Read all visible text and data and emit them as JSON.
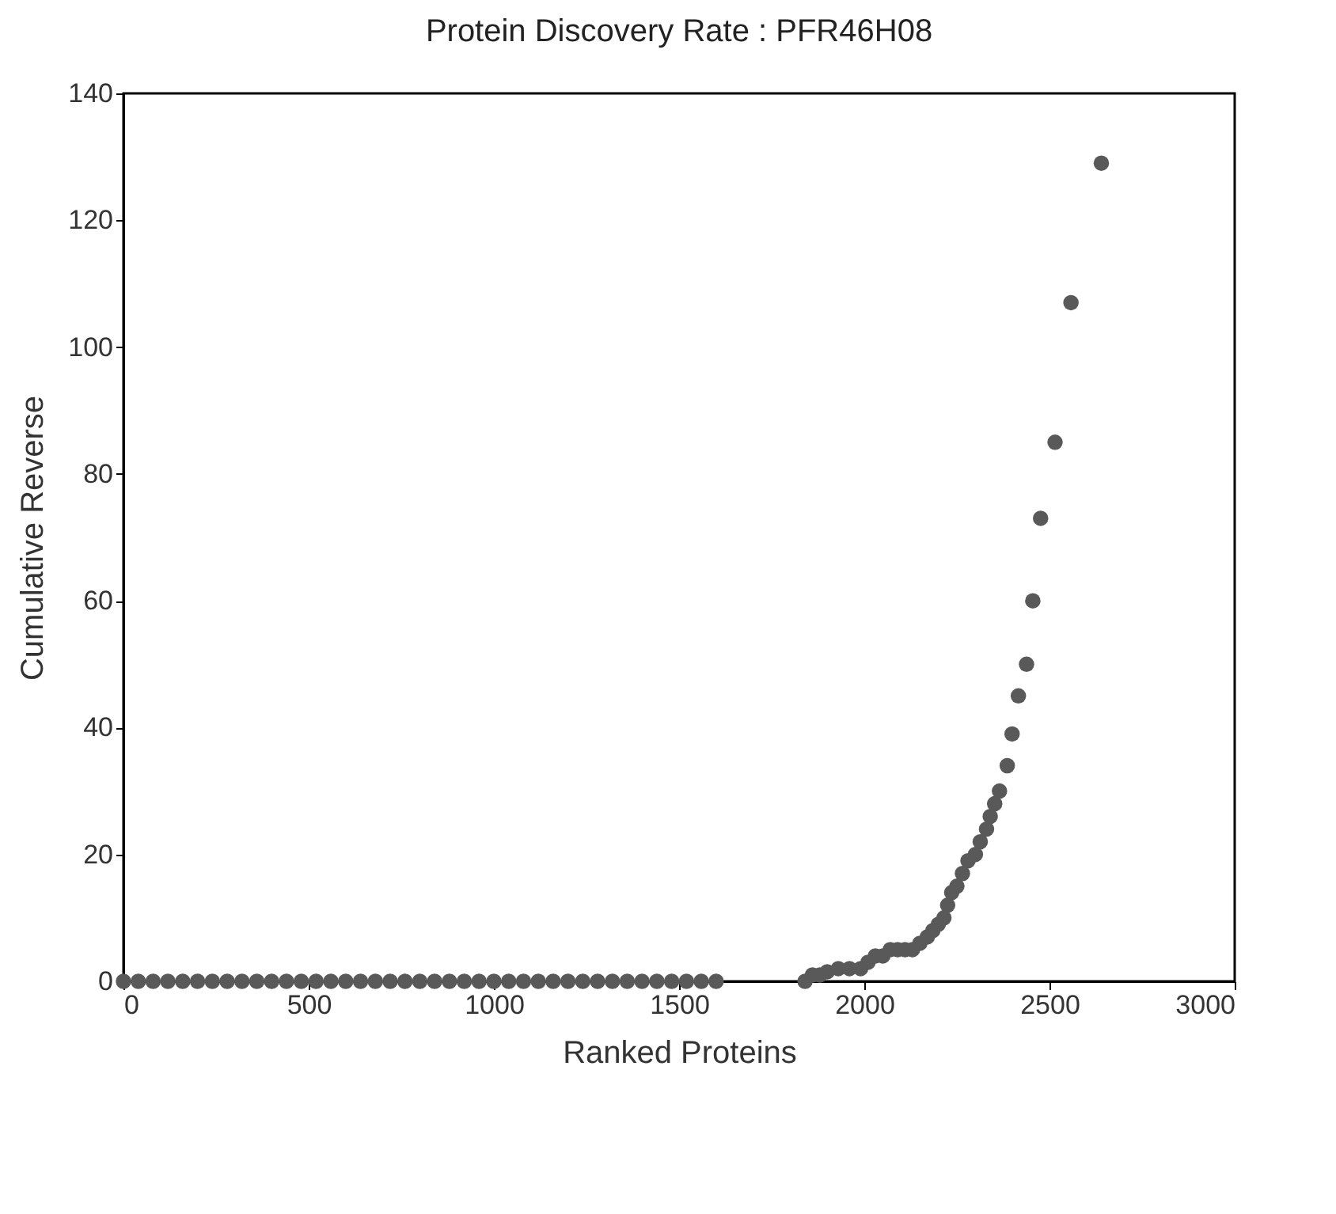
{
  "chart_data": {
    "type": "scatter",
    "title": "Protein Discovery Rate : PFR46H08",
    "xlabel": "Ranked Proteins",
    "ylabel": "Cumulative Reverse",
    "marker": "circle",
    "grid": false,
    "xlim": [
      0,
      3000
    ],
    "xticks": [
      0,
      500,
      1000,
      1500,
      2000,
      2500,
      3000
    ],
    "ylim": [
      0,
      140
    ],
    "yticks": [
      0,
      20,
      40,
      60,
      80,
      100,
      120,
      140
    ],
    "series": [
      {
        "color": "#595959",
        "x": [
          0,
          40,
          80,
          120,
          160,
          200,
          240,
          280,
          320,
          360,
          400,
          440,
          480,
          520,
          560,
          600,
          640,
          680,
          720,
          760,
          800,
          840,
          880,
          920,
          960,
          1000,
          1040,
          1080,
          1120,
          1160,
          1200,
          1240,
          1280,
          1320,
          1360,
          1400,
          1440,
          1480,
          1520,
          1560,
          1600,
          1840,
          1860,
          1880,
          1900,
          1930,
          1960,
          1990,
          2010,
          2030,
          2050,
          2070,
          2090,
          2110,
          2130,
          2150,
          2170,
          2185,
          2200,
          2215,
          2225,
          2236,
          2250,
          2265,
          2280,
          2300,
          2313,
          2330,
          2340,
          2352,
          2365,
          2386,
          2399,
          2416,
          2438,
          2455,
          2476,
          2515,
          2558,
          2640
        ],
        "values": [
          0,
          0,
          0,
          0,
          0,
          0,
          0,
          0,
          0,
          0,
          0,
          0,
          0,
          0,
          0,
          0,
          0,
          0,
          0,
          0,
          0,
          0,
          0,
          0,
          0,
          0,
          0,
          0,
          0,
          0,
          0,
          0,
          0,
          0,
          0,
          0,
          0,
          0,
          0,
          0,
          0,
          0,
          1,
          1,
          1.5,
          2,
          2,
          2,
          3,
          4,
          4,
          5,
          5,
          5,
          5,
          6,
          7,
          8,
          9,
          10,
          12,
          14,
          15,
          17,
          19,
          20,
          22,
          24,
          26,
          28,
          30,
          34,
          39,
          45,
          50,
          60,
          73,
          85,
          107,
          129
        ]
      }
    ]
  }
}
